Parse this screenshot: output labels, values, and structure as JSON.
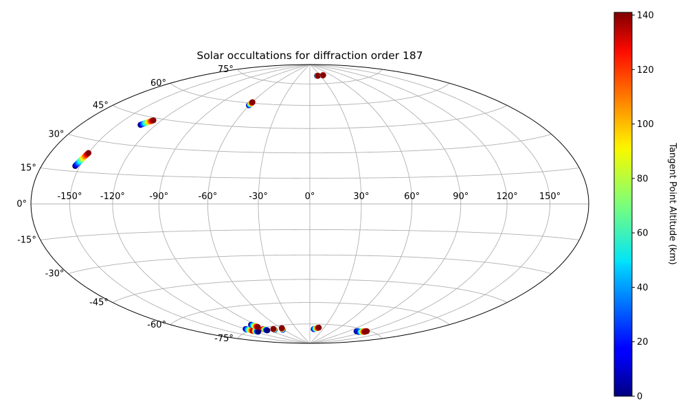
{
  "chart_data": {
    "type": "scatter",
    "projection": "hammer",
    "title": "Solar occultations for diffraction order 187",
    "grid": true,
    "lon_ticks": [
      -150,
      -120,
      -90,
      -60,
      -30,
      0,
      30,
      60,
      90,
      120,
      150
    ],
    "lon_tick_labels": [
      "-150°",
      "-120°",
      "-90°",
      "-60°",
      "-30°",
      "0°",
      "30°",
      "60°",
      "90°",
      "120°",
      "150°"
    ],
    "lat_ticks": [
      75,
      60,
      45,
      30,
      15,
      0,
      -15,
      -30,
      -45,
      -60,
      -75
    ],
    "lat_tick_labels": [
      "75°",
      "60°",
      "45°",
      "30°",
      "15°",
      "0°",
      "-15°",
      "-30°",
      "-45°",
      "-60°",
      "-75°"
    ],
    "colorbar": {
      "label": "Tangent Point Altitude (km)",
      "range": [
        0,
        141
      ],
      "ticks": [
        0,
        20,
        40,
        60,
        80,
        100,
        120,
        140
      ],
      "tick_labels": [
        "0",
        "20",
        "40",
        "60",
        "80",
        "100",
        "120",
        "140"
      ],
      "colormap": "jet"
    },
    "tracks": [
      {
        "lon_start": -153.5,
        "lat_start": 17.5,
        "lon_end": -150.0,
        "lat_end": 24.0,
        "alt_start": 0,
        "alt_end": 140
      },
      {
        "lon_start": -132.0,
        "lat_start": 40.5,
        "lon_end": -126.5,
        "lat_end": 43.7,
        "alt_start": 0,
        "alt_end": 140
      },
      {
        "lon_start": -60.5,
        "lat_start": 58.5,
        "lon_end": -60.0,
        "lat_end": 60.6,
        "alt_start": 0,
        "alt_end": 140
      },
      {
        "lon_start": 20.0,
        "lat_start": 81.0,
        "lon_end": 23.0,
        "lat_end": 81.0,
        "alt_start": 0,
        "alt_end": 140
      },
      {
        "lon_start": 37.0,
        "lat_start": 81.0,
        "lon_end": 39.0,
        "lat_end": 81.2,
        "alt_start": 0,
        "alt_end": 140
      },
      {
        "lon_start": -120.0,
        "lat_start": -73.5,
        "lon_end": -118.0,
        "lat_end": -75.5,
        "alt_start": 0,
        "alt_end": 140
      },
      {
        "lon_start": -117.0,
        "lat_start": -75.5,
        "lon_end": -114.5,
        "lat_end": -76.5,
        "alt_start": 140,
        "alt_end": 0
      },
      {
        "lon_start": -97.0,
        "lat_start": -72.0,
        "lon_end": -95.0,
        "lat_end": -74.0,
        "alt_start": 0,
        "alt_end": 140
      },
      {
        "lon_start": -95.0,
        "lat_start": -75.8,
        "lon_end": -93.5,
        "lat_end": -77.0,
        "alt_start": 140,
        "alt_end": 0
      },
      {
        "lon_start": -78.0,
        "lat_start": -77.5,
        "lon_end": -77.0,
        "lat_end": -76.8,
        "alt_start": 0,
        "alt_end": 140
      },
      {
        "lon_start": -62.0,
        "lat_start": -78.2,
        "lon_end": -58.5,
        "lat_end": -77.0,
        "alt_start": 0,
        "alt_end": 140
      },
      {
        "lon_start": 9.0,
        "lat_start": -78.8,
        "lon_end": 19.0,
        "lat_end": -77.6,
        "alt_start": 0,
        "alt_end": 140
      },
      {
        "lon_start": 105.0,
        "lat_start": -77.0,
        "lon_end": 120.0,
        "lat_end": -75.5,
        "alt_start": 0,
        "alt_end": 140
      },
      {
        "lon_start": 112.0,
        "lat_start": -77.0,
        "lon_end": 120.0,
        "lat_end": -76.0,
        "alt_start": 0,
        "alt_end": 140
      }
    ]
  }
}
